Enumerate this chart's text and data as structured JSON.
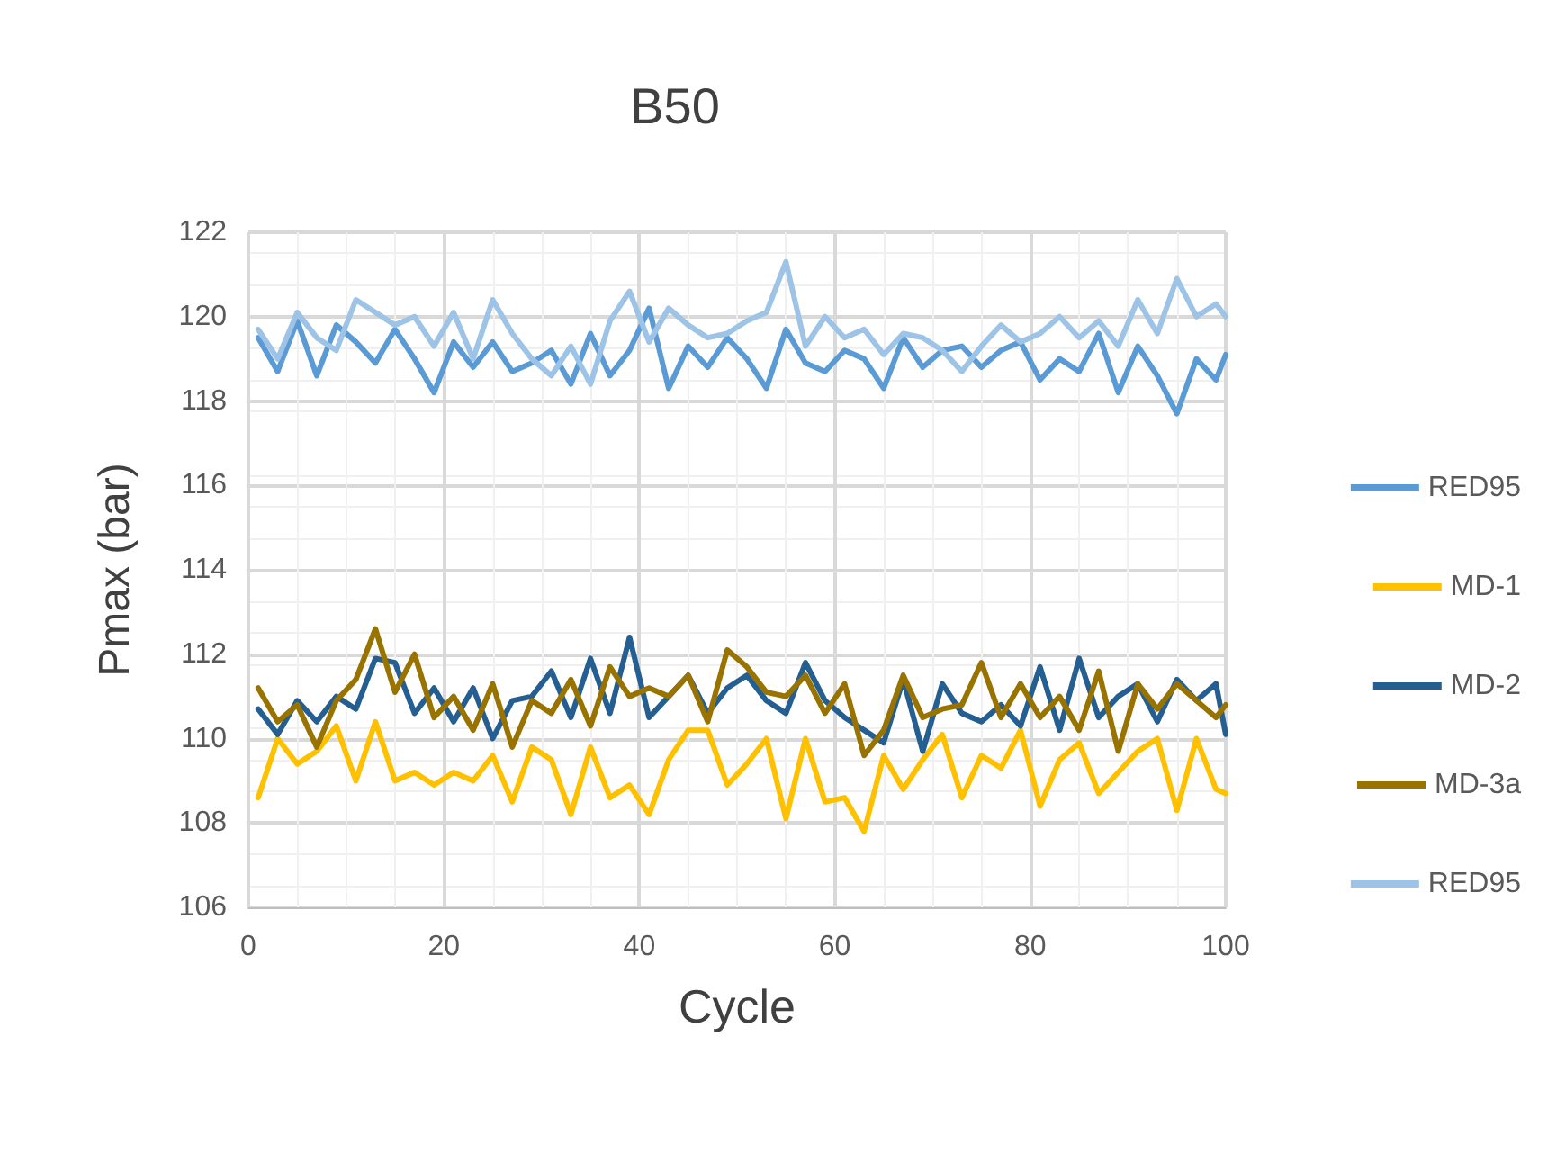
{
  "chart_data": {
    "type": "line",
    "title": "B50",
    "xlabel": "Cycle",
    "ylabel": "Pmax (bar)",
    "x": [
      1,
      3,
      5,
      7,
      9,
      11,
      13,
      15,
      17,
      19,
      21,
      23,
      25,
      27,
      29,
      31,
      33,
      35,
      37,
      39,
      41,
      43,
      45,
      47,
      49,
      51,
      53,
      55,
      57,
      59,
      61,
      63,
      65,
      67,
      69,
      71,
      73,
      75,
      77,
      79,
      81,
      83,
      85,
      87,
      89,
      91,
      93,
      95,
      97,
      99,
      100
    ],
    "series": [
      {
        "name": "RED95",
        "color": "#5b9bd5",
        "values": [
          119.5,
          118.7,
          119.9,
          118.6,
          119.8,
          119.4,
          118.9,
          119.7,
          119.0,
          118.2,
          119.4,
          118.8,
          119.4,
          118.7,
          118.9,
          119.2,
          118.4,
          119.6,
          118.6,
          119.2,
          120.2,
          118.3,
          119.3,
          118.8,
          119.5,
          119.0,
          118.3,
          119.7,
          118.9,
          118.7,
          119.2,
          119.0,
          118.3,
          119.5,
          118.8,
          119.2,
          119.3,
          118.8,
          119.2,
          119.4,
          118.5,
          119.0,
          118.7,
          119.6,
          118.2,
          119.3,
          118.6,
          117.7,
          119.0,
          118.5,
          119.1
        ]
      },
      {
        "name": "MD-1",
        "color": "#ffc000",
        "values": [
          108.6,
          110.0,
          109.4,
          109.7,
          110.3,
          109.0,
          110.4,
          109.0,
          109.2,
          108.9,
          109.2,
          109.0,
          109.6,
          108.5,
          109.8,
          109.5,
          108.2,
          109.8,
          108.6,
          108.9,
          108.2,
          109.5,
          110.2,
          110.2,
          108.9,
          109.4,
          110.0,
          108.1,
          110.0,
          108.5,
          108.6,
          107.8,
          109.6,
          108.8,
          109.5,
          110.1,
          108.6,
          109.6,
          109.3,
          110.2,
          108.4,
          109.5,
          109.9,
          108.7,
          109.2,
          109.7,
          110.0,
          108.3,
          110.0,
          108.8,
          108.7
        ]
      },
      {
        "name": "MD-2",
        "color": "#255e91",
        "values": [
          110.7,
          110.1,
          110.9,
          110.4,
          111.0,
          110.7,
          111.9,
          111.8,
          110.6,
          111.2,
          110.4,
          111.2,
          110.0,
          110.9,
          111.0,
          111.6,
          110.5,
          111.9,
          110.6,
          112.4,
          110.5,
          111.0,
          111.5,
          110.6,
          111.2,
          111.5,
          110.9,
          110.6,
          111.8,
          110.9,
          110.5,
          110.2,
          109.9,
          111.4,
          109.7,
          111.3,
          110.6,
          110.4,
          110.8,
          110.3,
          111.7,
          110.2,
          111.9,
          110.5,
          111.0,
          111.3,
          110.4,
          111.4,
          110.9,
          111.3,
          110.1
        ]
      },
      {
        "name": "MD-3a",
        "color": "#997300",
        "values": [
          111.2,
          110.4,
          110.8,
          109.8,
          110.9,
          111.4,
          112.6,
          111.1,
          112.0,
          110.5,
          111.0,
          110.2,
          111.3,
          109.8,
          110.9,
          110.6,
          111.4,
          110.3,
          111.7,
          111.0,
          111.2,
          111.0,
          111.5,
          110.4,
          112.1,
          111.7,
          111.1,
          111.0,
          111.5,
          110.6,
          111.3,
          109.6,
          110.2,
          111.5,
          110.5,
          110.7,
          110.8,
          111.8,
          110.5,
          111.3,
          110.5,
          111.0,
          110.2,
          111.6,
          109.7,
          111.3,
          110.7,
          111.3,
          110.9,
          110.5,
          110.8
        ]
      },
      {
        "name": "RED95",
        "color": "#9dc3e6",
        "values": [
          119.7,
          119.0,
          120.1,
          119.5,
          119.2,
          120.4,
          120.1,
          119.8,
          120.0,
          119.3,
          120.1,
          119.0,
          120.4,
          119.6,
          119.0,
          118.6,
          119.3,
          118.4,
          119.9,
          120.6,
          119.4,
          120.2,
          119.8,
          119.5,
          119.6,
          119.9,
          120.1,
          121.3,
          119.3,
          120.0,
          119.5,
          119.7,
          119.1,
          119.6,
          119.5,
          119.2,
          118.7,
          119.3,
          119.8,
          119.4,
          119.6,
          120.0,
          119.5,
          119.9,
          119.3,
          120.4,
          119.6,
          120.9,
          120.0,
          120.3,
          120.0
        ]
      }
    ],
    "xlim": [
      0,
      100
    ],
    "xticks": [
      0,
      20,
      40,
      60,
      80,
      100
    ],
    "ylim": [
      106,
      122
    ],
    "yticks": [
      106,
      108,
      110,
      112,
      114,
      116,
      118,
      120,
      122
    ],
    "grid": true,
    "legend": "right",
    "marker": "none",
    "line_style": "solid"
  }
}
